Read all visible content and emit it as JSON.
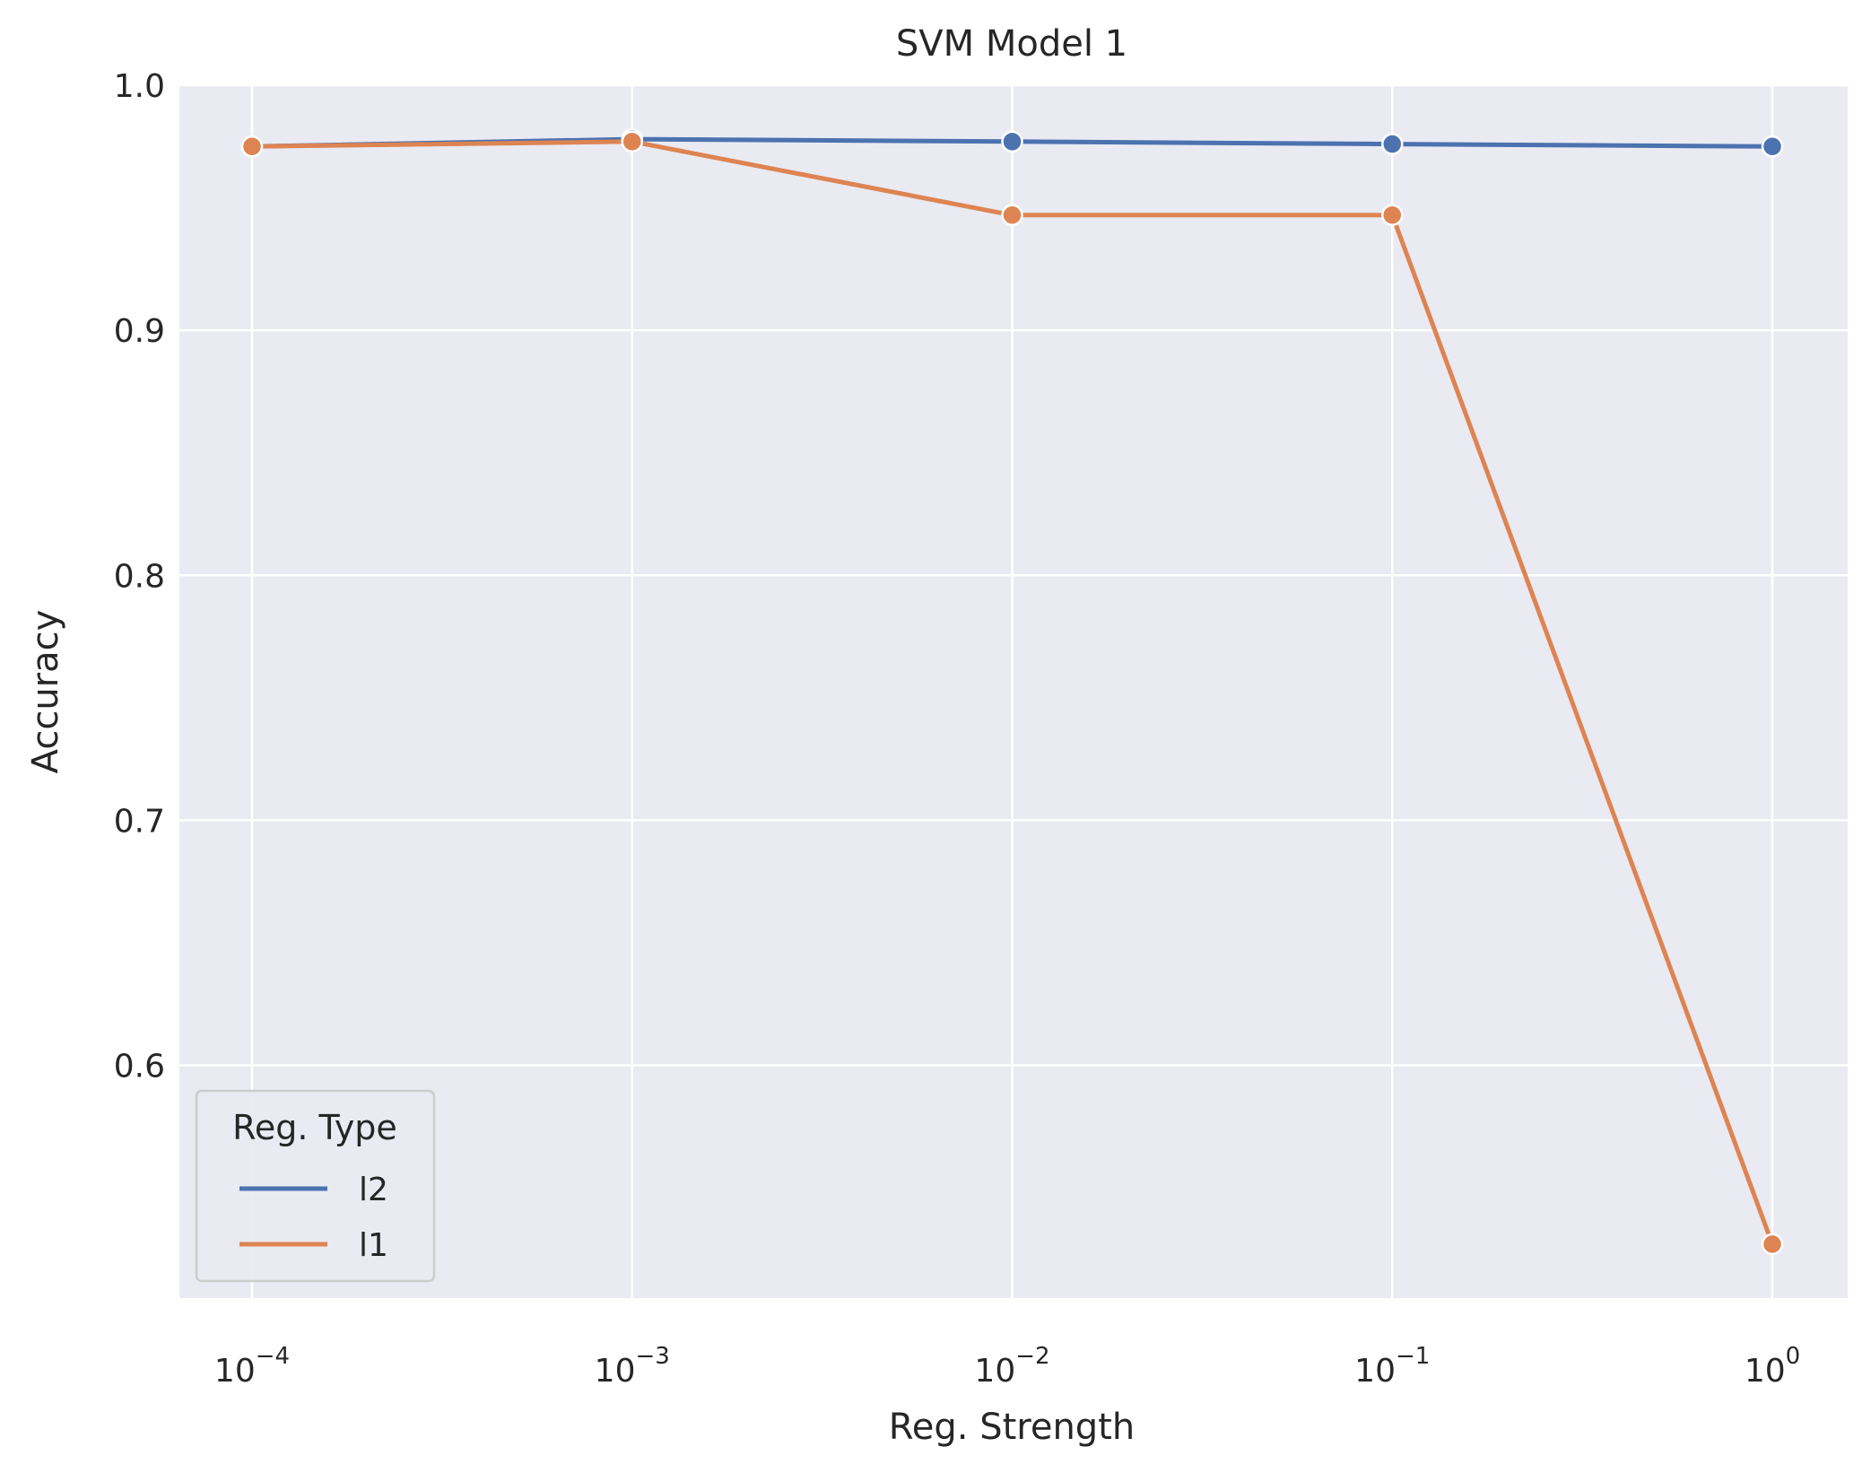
{
  "chart_data": {
    "type": "line",
    "title": "SVM Model 1",
    "xlabel": "Reg. Strength",
    "ylabel": "Accuracy",
    "x_scale": "log",
    "x": [
      0.0001,
      0.001,
      0.01,
      0.1,
      1
    ],
    "x_tick_labels": [
      {
        "base": "10",
        "exp": "−4"
      },
      {
        "base": "10",
        "exp": "−3"
      },
      {
        "base": "10",
        "exp": "−2"
      },
      {
        "base": "10",
        "exp": "−1"
      },
      {
        "base": "10",
        "exp": "0"
      }
    ],
    "y_ticks": [
      "0.6",
      "0.7",
      "0.8",
      "0.9",
      "1.0"
    ],
    "ylim": [
      0.505,
      1.0
    ],
    "grid": true,
    "legend": {
      "title": "Reg. Type",
      "placement": "lower-left"
    },
    "series": [
      {
        "name": "l2",
        "color": "#4c72b0",
        "values": [
          0.975,
          0.978,
          0.977,
          0.976,
          0.975
        ]
      },
      {
        "name": "l1",
        "color": "#dd8452",
        "values": [
          0.975,
          0.977,
          0.947,
          0.947,
          0.527
        ]
      }
    ]
  },
  "colors": {
    "plot_background": "#eaeaf2",
    "grid": "#ffffff",
    "text": "#262626"
  }
}
